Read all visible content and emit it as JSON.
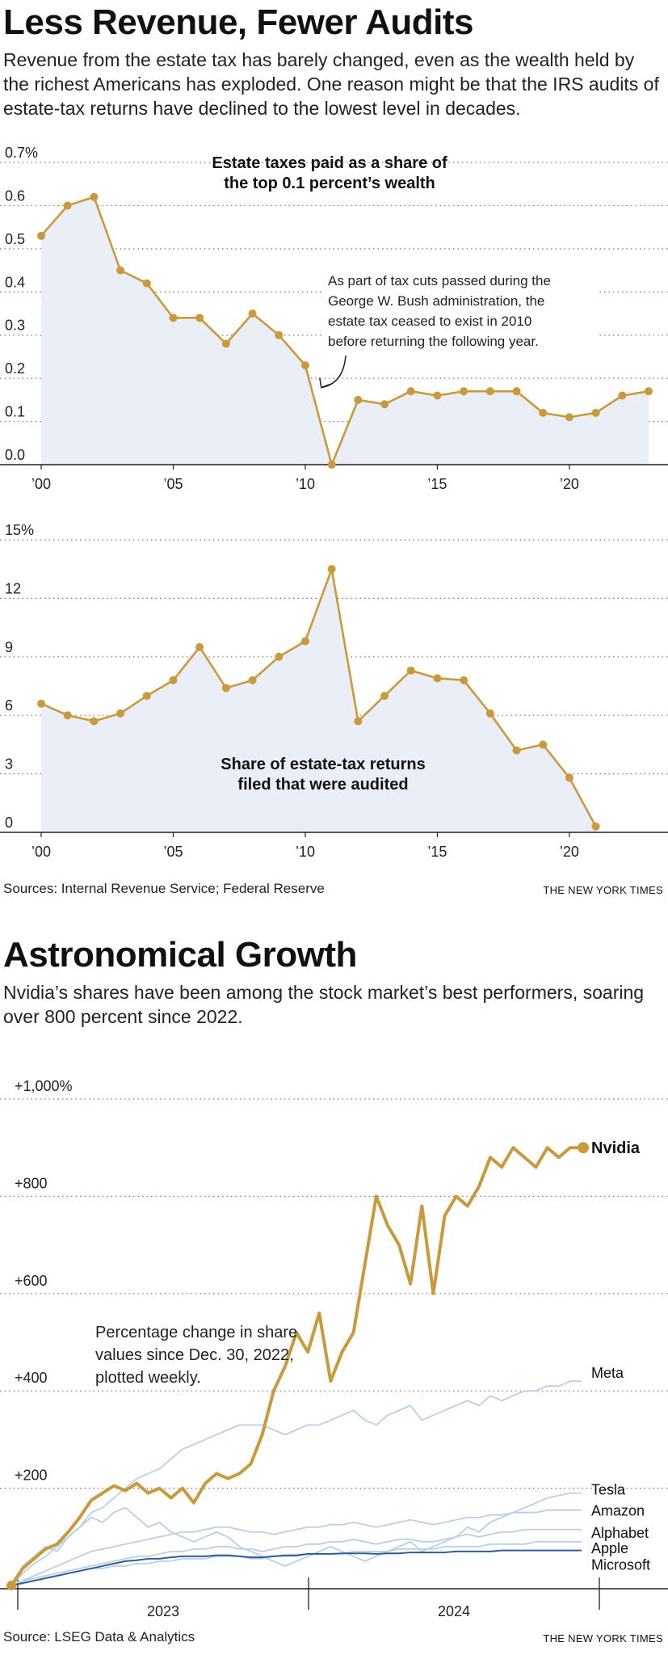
{
  "section1": {
    "headline": "Less Revenue, Fewer Audits",
    "dek": "Revenue from the estate tax has barely changed, even as the wealth held by the richest Americans has exploded. One reason might be that the IRS audits of estate-tax returns have declined to the lowest level in decades.",
    "source": "Sources: Internal Revenue Service; Federal Reserve",
    "credit": "THE NEW YORK TIMES"
  },
  "section2": {
    "headline": "Astronomical Growth",
    "dek": "Nvidia’s shares have been among the stock market’s best performers, soaring over 800 percent since 2022.",
    "source": "Source: LSEG Data & Analytics",
    "credit": "THE NEW YORK TIMES"
  },
  "colors": {
    "accent": "#c99a3c",
    "fill": "#e9eef7",
    "muted_line": "#b9cfe6",
    "dark_line": "#2e5e97"
  },
  "chart_data": [
    {
      "type": "area",
      "title": "Estate taxes paid as a share of the top 0.1 percent’s wealth",
      "title_lines": [
        "Estate taxes paid as a share of",
        "the top 0.1 percent’s wealth"
      ],
      "y_tick_labels": [
        "0.0",
        "0.1",
        "0.2",
        "0.3",
        "0.4",
        "0.5",
        "0.6",
        "0.7%"
      ],
      "y_ticks": [
        0,
        0.1,
        0.2,
        0.3,
        0.4,
        0.5,
        0.6,
        0.7
      ],
      "ylim": [
        0,
        0.7
      ],
      "x_tick_labels": [
        "’00",
        "’05",
        "’10",
        "’15",
        "’20"
      ],
      "x_ticks": [
        2000,
        2005,
        2010,
        2015,
        2020
      ],
      "xlim": [
        2000,
        2023
      ],
      "x": [
        2000,
        2001,
        2002,
        2003,
        2004,
        2005,
        2006,
        2007,
        2008,
        2009,
        2010,
        2011,
        2012,
        2013,
        2014,
        2015,
        2016,
        2017,
        2018,
        2019,
        2020,
        2021,
        2022,
        2023
      ],
      "values": [
        0.53,
        0.6,
        0.62,
        0.45,
        0.42,
        0.34,
        0.34,
        0.28,
        0.35,
        0.3,
        0.23,
        0.0,
        0.15,
        0.14,
        0.17,
        0.16,
        0.17,
        0.17,
        0.17,
        0.12,
        0.11,
        0.12,
        0.16,
        0.17
      ],
      "grid": true,
      "annotation": "As part of tax cuts passed during the George W. Bush administration, the estate tax ceased to exist in 2010 before returning the following year.",
      "annotation_lines": [
        "As part of tax cuts passed during the",
        "George W. Bush administration, the",
        "estate tax ceased to exist in 2010",
        "before returning the following year."
      ]
    },
    {
      "type": "area",
      "title": "Share of estate-tax returns filed that were audited",
      "title_lines": [
        "Share of estate-tax returns",
        "filed that were audited"
      ],
      "y_tick_labels": [
        "0",
        "3",
        "6",
        "9",
        "12",
        "15%"
      ],
      "y_ticks": [
        0,
        3,
        6,
        9,
        12,
        15
      ],
      "ylim": [
        0,
        15
      ],
      "x_tick_labels": [
        "’00",
        "’05",
        "’10",
        "’15",
        "’20"
      ],
      "x_ticks": [
        2000,
        2005,
        2010,
        2015,
        2020
      ],
      "xlim": [
        2000,
        2023
      ],
      "x": [
        2000,
        2001,
        2002,
        2003,
        2004,
        2005,
        2006,
        2007,
        2008,
        2009,
        2010,
        2011,
        2012,
        2013,
        2014,
        2015,
        2016,
        2017,
        2018,
        2019,
        2020,
        2021
      ],
      "values": [
        6.6,
        6.0,
        5.7,
        6.1,
        7.0,
        7.8,
        9.5,
        7.4,
        7.8,
        9.0,
        9.8,
        13.5,
        5.7,
        7.0,
        8.3,
        7.9,
        7.8,
        6.1,
        4.2,
        4.5,
        2.8,
        0.3
      ],
      "grid": true
    },
    {
      "type": "line",
      "annotation": "Percentage change in share values since Dec. 30, 2022, plotted weekly.",
      "annotation_lines": [
        "Percentage change in share",
        "values since Dec. 30, 2022,",
        "plotted weekly."
      ],
      "y_tick_labels": [
        "+200",
        "+400",
        "+600",
        "+800",
        "+1,000%"
      ],
      "y_ticks": [
        200,
        400,
        600,
        800,
        1000
      ],
      "ylim": [
        0,
        1000
      ],
      "x_tick_labels": [
        "2023",
        "2024"
      ],
      "x": [
        0,
        2,
        4,
        6,
        8,
        10,
        12,
        14,
        16,
        18,
        20,
        22,
        24,
        26,
        28,
        30,
        32,
        34,
        36,
        38,
        40,
        42,
        44,
        46,
        48,
        50,
        52,
        54,
        56,
        58,
        60,
        62,
        64,
        66,
        68,
        70,
        72,
        74,
        76,
        78,
        80,
        82,
        84,
        86,
        88,
        90,
        92,
        94,
        96,
        98,
        100
      ],
      "x_unit": "weeks since Dec. 30, 2022",
      "series": [
        {
          "name": "Nvidia",
          "emphasis": true,
          "values": [
            0,
            35,
            55,
            75,
            85,
            110,
            140,
            175,
            190,
            205,
            195,
            210,
            190,
            200,
            180,
            200,
            170,
            210,
            230,
            220,
            230,
            250,
            310,
            400,
            450,
            520,
            480,
            560,
            420,
            480,
            520,
            660,
            800,
            740,
            700,
            620,
            780,
            600,
            760,
            800,
            780,
            820,
            880,
            860,
            900,
            880,
            860,
            900,
            880,
            900,
            900
          ]
        },
        {
          "name": "Meta",
          "values": [
            0,
            25,
            45,
            60,
            80,
            100,
            120,
            150,
            160,
            180,
            200,
            220,
            230,
            240,
            260,
            280,
            290,
            300,
            310,
            320,
            330,
            330,
            330,
            320,
            310,
            320,
            330,
            330,
            340,
            350,
            360,
            340,
            330,
            350,
            360,
            370,
            340,
            350,
            360,
            370,
            380,
            370,
            390,
            380,
            390,
            400,
            400,
            410,
            410,
            420,
            420
          ]
        },
        {
          "name": "Tesla",
          "values": [
            0,
            40,
            60,
            80,
            70,
            100,
            120,
            140,
            130,
            150,
            160,
            140,
            120,
            130,
            110,
            100,
            90,
            100,
            110,
            100,
            80,
            70,
            60,
            50,
            40,
            50,
            60,
            70,
            80,
            70,
            60,
            50,
            60,
            70,
            80,
            90,
            70,
            80,
            90,
            100,
            120,
            110,
            130,
            140,
            150,
            160,
            170,
            180,
            185,
            190,
            190
          ]
        },
        {
          "name": "Amazon",
          "values": [
            0,
            10,
            20,
            30,
            40,
            50,
            60,
            70,
            75,
            80,
            85,
            90,
            95,
            100,
            105,
            110,
            110,
            115,
            120,
            120,
            115,
            110,
            110,
            105,
            110,
            115,
            120,
            120,
            125,
            125,
            130,
            125,
            120,
            125,
            130,
            135,
            130,
            125,
            130,
            135,
            140,
            140,
            145,
            145,
            150,
            150,
            150,
            155,
            155,
            155,
            155
          ]
        },
        {
          "name": "Alphabet",
          "values": [
            0,
            10,
            15,
            20,
            25,
            30,
            35,
            40,
            45,
            50,
            55,
            60,
            60,
            65,
            70,
            70,
            75,
            75,
            80,
            80,
            75,
            75,
            70,
            75,
            80,
            80,
            85,
            85,
            90,
            90,
            95,
            90,
            85,
            90,
            95,
            95,
            90,
            90,
            95,
            100,
            105,
            100,
            105,
            110,
            110,
            115,
            115,
            115,
            115,
            115,
            115
          ]
        },
        {
          "name": "Apple",
          "values": [
            0,
            5,
            10,
            15,
            20,
            25,
            30,
            35,
            35,
            40,
            40,
            45,
            45,
            50,
            50,
            55,
            55,
            55,
            60,
            60,
            60,
            55,
            55,
            60,
            60,
            60,
            65,
            65,
            65,
            65,
            70,
            70,
            70,
            70,
            75,
            75,
            75,
            75,
            80,
            80,
            80,
            80,
            85,
            85,
            85,
            85,
            90,
            90,
            90,
            90,
            90
          ]
        },
        {
          "name": "Microsoft",
          "emphasis_dark": true,
          "values": [
            0,
            5,
            10,
            15,
            20,
            25,
            30,
            35,
            40,
            45,
            50,
            52,
            55,
            55,
            58,
            60,
            60,
            60,
            62,
            62,
            60,
            58,
            58,
            60,
            62,
            62,
            65,
            65,
            65,
            66,
            66,
            66,
            65,
            66,
            66,
            68,
            68,
            68,
            68,
            70,
            70,
            70,
            70,
            72,
            72,
            72,
            72,
            72,
            72,
            72,
            72
          ]
        }
      ],
      "grid": true
    }
  ]
}
